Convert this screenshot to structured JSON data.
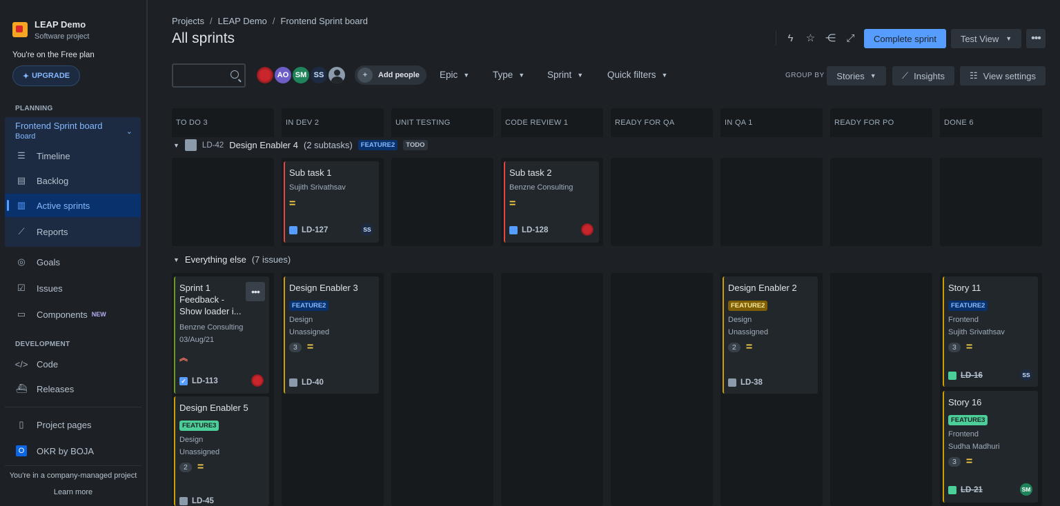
{
  "project": {
    "name": "LEAP Demo",
    "type": "Software project"
  },
  "plan": {
    "notice": "You're on the Free plan",
    "upgrade_label": "UPGRADE"
  },
  "sidebar": {
    "planning_label": "PLANNING",
    "board": {
      "title": "Frontend Sprint board",
      "subtitle": "Board"
    },
    "board_items": [
      {
        "label": "Timeline",
        "icon": "timeline-icon"
      },
      {
        "label": "Backlog",
        "icon": "backlog-icon"
      },
      {
        "label": "Active sprints",
        "icon": "columns-icon",
        "active": true
      },
      {
        "label": "Reports",
        "icon": "chart-icon"
      }
    ],
    "items": [
      {
        "label": "Goals",
        "icon": "target-icon"
      },
      {
        "label": "Issues",
        "icon": "issues-icon"
      },
      {
        "label": "Components",
        "icon": "components-icon",
        "badge": "NEW"
      }
    ],
    "development_label": "DEVELOPMENT",
    "dev_items": [
      {
        "label": "Code",
        "icon": "code-icon"
      },
      {
        "label": "Releases",
        "icon": "ship-icon"
      }
    ],
    "bottom_items": [
      {
        "label": "Project pages",
        "icon": "page-icon"
      },
      {
        "label": "OKR by BOJA",
        "icon": "okr-icon"
      }
    ],
    "footer_text": "You're in a company-managed project",
    "learn_more": "Learn more"
  },
  "breadcrumb": [
    "Projects",
    "LEAP Demo",
    "Frontend Sprint board"
  ],
  "page_title": "All sprints",
  "header": {
    "complete_sprint": "Complete sprint",
    "view_label": "Test View"
  },
  "toolbar": {
    "avatars": [
      "AO",
      "SM",
      "SS"
    ],
    "add_people": "Add people",
    "filters": [
      "Epic",
      "Type",
      "Sprint",
      "Quick filters"
    ],
    "group_by_label": "GROUP BY",
    "group_by_value": "Stories",
    "insights": "Insights",
    "view_settings": "View settings"
  },
  "columns": [
    "TO DO 3",
    "IN DEV 2",
    "UNIT TESTING",
    "CODE REVIEW 1",
    "READY FOR QA",
    "IN QA 1",
    "READY FOR PO",
    "DONE 6"
  ],
  "swimlanes": {
    "first": {
      "key": "LD-42",
      "title": "Design Enabler 4",
      "count": "(2 subtasks)",
      "label": "FEATURE2",
      "status": "TODO"
    },
    "second": {
      "title": "Everything else",
      "count": "(7 issues)"
    }
  },
  "cards": {
    "sub1": {
      "title": "Sub task 1",
      "assignee": "Sujith Srivathsav",
      "key": "LD-127",
      "avatar": "SS"
    },
    "sub2": {
      "title": "Sub task 2",
      "assignee": "Benzne Consulting",
      "key": "LD-128"
    },
    "s1": {
      "title": "Sprint 1 Feedback - Show loader i...",
      "assignee": "Benzne Consulting",
      "date": "03/Aug/21",
      "key": "LD-113"
    },
    "de5": {
      "title": "Design Enabler 5",
      "label": "FEATURE3",
      "component": "Design",
      "assignee": "Unassigned",
      "estimate": "2",
      "key": "LD-45"
    },
    "de3": {
      "title": "Design Enabler 3",
      "label": "FEATURE2",
      "component": "Design",
      "assignee": "Unassigned",
      "estimate": "3",
      "key": "LD-40"
    },
    "de2": {
      "title": "Design Enabler 2",
      "label": "FEATURE2",
      "component": "Design",
      "assignee": "Unassigned",
      "estimate": "2",
      "key": "LD-38"
    },
    "st11": {
      "title": "Story 11",
      "label": "FEATURE2",
      "component": "Frontend",
      "assignee": "Sujith Srivathsav",
      "estimate": "3",
      "key": "LD-16",
      "avatar": "SS"
    },
    "st16": {
      "title": "Story 16",
      "label": "FEATURE3",
      "component": "Frontend",
      "assignee": "Sudha Madhuri",
      "estimate": "3",
      "key": "LD-21",
      "avatar": "SM"
    }
  }
}
